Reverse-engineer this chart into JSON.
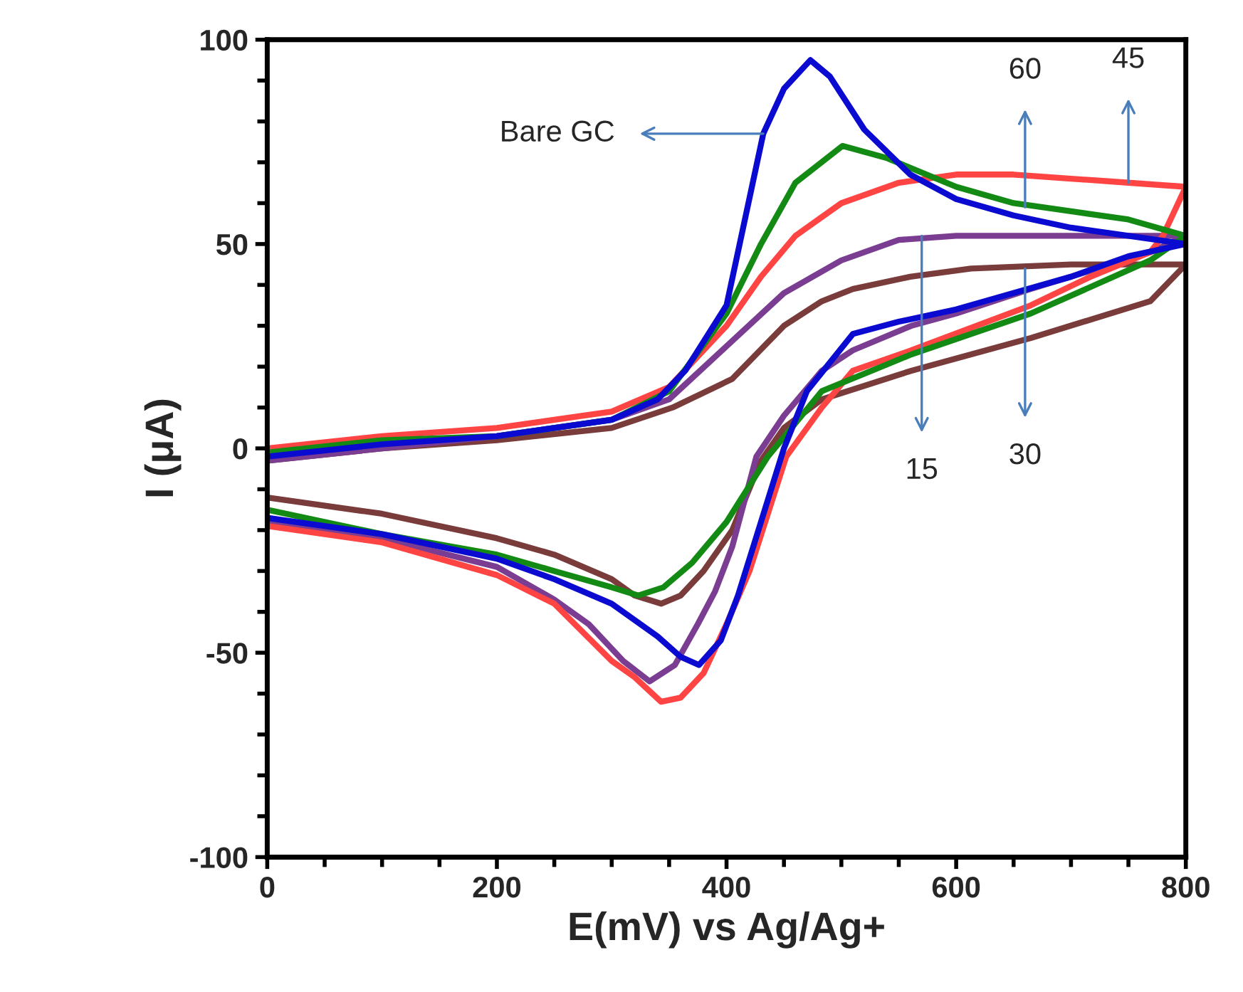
{
  "chart_data": {
    "type": "line",
    "xlabel": "E(mV) vs Ag/Ag+",
    "ylabel": "I (μA)",
    "xlim": [
      0,
      800
    ],
    "xticks": [
      0,
      200,
      400,
      600,
      800
    ],
    "ylim": [
      -100,
      100
    ],
    "yticks": [
      -100,
      -50,
      0,
      50,
      100
    ],
    "grid": false,
    "legend": false,
    "marker": "none",
    "line_style": "solid",
    "series": [
      {
        "color": "#0a0ad0",
        "x": [
          0,
          100,
          200,
          300,
          340,
          364,
          400,
          432,
          450,
          473,
          490,
          520,
          560,
          600,
          650,
          700,
          750,
          800,
          750,
          700,
          650,
          600,
          550,
          510,
          470,
          450,
          430,
          410,
          395,
          376,
          360,
          340,
          300,
          250,
          200,
          100,
          0
        ],
        "values": [
          -2,
          1,
          3,
          7,
          12,
          19,
          35,
          77,
          88,
          95,
          91,
          78,
          67,
          61,
          57,
          54,
          52,
          50,
          47,
          42,
          38,
          34,
          31,
          28,
          14,
          0,
          -18,
          -36,
          -47,
          -53,
          -51,
          -46,
          -38,
          -32,
          -27,
          -21,
          -17
        ]
      },
      {
        "color": "#138a13",
        "x": [
          0,
          100,
          200,
          300,
          350,
          400,
          430,
          460,
          501,
          540,
          600,
          650,
          700,
          750,
          800,
          769,
          665,
          561,
          483,
          436,
          400,
          370,
          345,
          323,
          300,
          250,
          200,
          100,
          0
        ],
        "values": [
          -1,
          2,
          3,
          7,
          14,
          33,
          50,
          65,
          74,
          71,
          64,
          60,
          58,
          56,
          52,
          46,
          33,
          23,
          14,
          -2,
          -18,
          -28,
          -34,
          -36,
          -34,
          -30,
          -26,
          -21,
          -15
        ]
      },
      {
        "color": "#ff4444",
        "x": [
          0,
          100,
          200,
          300,
          350,
          400,
          430,
          460,
          500,
          550,
          600,
          650,
          700,
          750,
          800,
          780,
          769,
          717,
          665,
          561,
          510,
          483,
          452,
          420,
          400,
          380,
          360,
          343,
          320,
          300,
          250,
          200,
          100,
          0
        ],
        "values": [
          0,
          3,
          5,
          9,
          15,
          30,
          42,
          52,
          60,
          65,
          67,
          67,
          66,
          65,
          64,
          52,
          48,
          42,
          35,
          24,
          19,
          10,
          -2,
          -30,
          -43,
          -55,
          -61,
          -62,
          -56,
          -52,
          -38,
          -31,
          -23,
          -19
        ]
      },
      {
        "color": "#7b3d92",
        "x": [
          0,
          100,
          200,
          300,
          350,
          400,
          450,
          500,
          550,
          600,
          700,
          800,
          769,
          700,
          665,
          600,
          561,
          510,
          483,
          450,
          426,
          405,
          390,
          375,
          355,
          333,
          310,
          280,
          250,
          200,
          100,
          0
        ],
        "values": [
          -3,
          0,
          3,
          7,
          12,
          25,
          38,
          46,
          51,
          52,
          52,
          52,
          48,
          42,
          39,
          33,
          30,
          24,
          19,
          8,
          -2,
          -24,
          -35,
          -43,
          -53,
          -57,
          -52,
          -43,
          -37,
          -29,
          -22,
          -18
        ]
      },
      {
        "color": "#7a3b3b",
        "x": [
          0,
          100,
          200,
          300,
          353,
          405,
          450,
          483,
          510,
          560,
          613,
          700,
          800,
          769,
          665,
          561,
          483,
          450,
          430,
          405,
          380,
          360,
          343,
          320,
          300,
          250,
          200,
          100,
          0
        ],
        "values": [
          -3,
          0,
          2,
          5,
          10,
          17,
          30,
          36,
          39,
          42,
          44,
          45,
          45,
          36,
          27,
          19,
          12,
          5,
          -3,
          -20,
          -30,
          -36,
          -38,
          -36,
          -32,
          -26,
          -22,
          -16,
          -12
        ]
      }
    ],
    "annotations": [
      {
        "text": "Bare GC",
        "x": 432,
        "y": 77
      },
      {
        "text": "60",
        "x": 660,
        "y": 59
      },
      {
        "text": "45",
        "x": 750,
        "y": 65
      },
      {
        "text": "15",
        "x": 570,
        "y": 52
      },
      {
        "text": "30",
        "x": 660,
        "y": 44
      }
    ]
  }
}
